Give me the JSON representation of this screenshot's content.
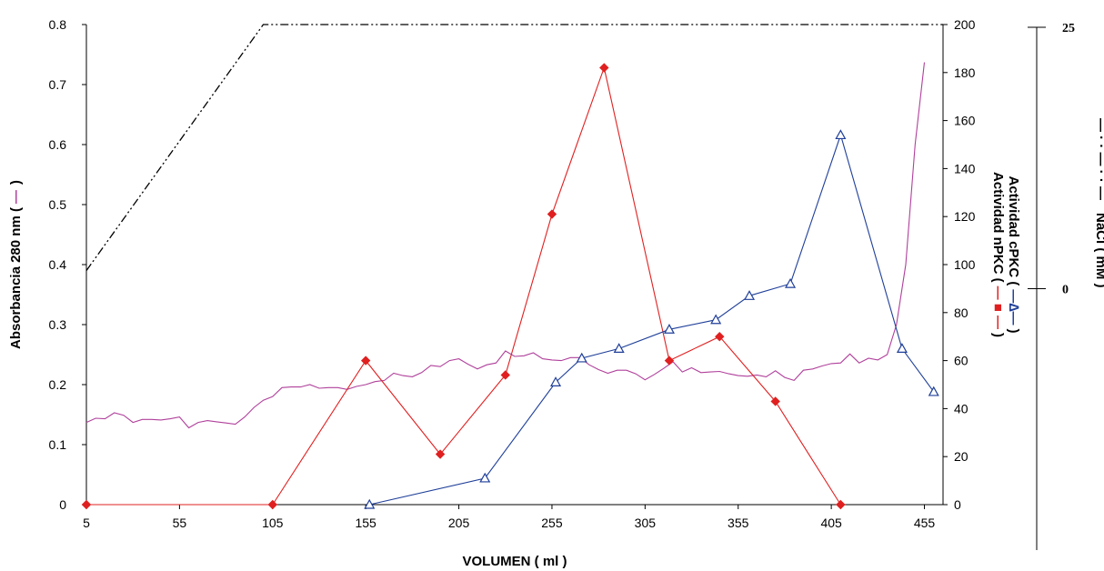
{
  "chart_data": {
    "type": "line",
    "xlabel": "VOLUMEN ( ml )",
    "x_ticks": [
      "5",
      "55",
      "105",
      "155",
      "205",
      "255",
      "305",
      "355",
      "405",
      "455"
    ],
    "xlim": [
      5,
      465
    ],
    "y_left": {
      "label_parts": [
        "Absorbancia 280 nm (",
        "—",
        ")"
      ],
      "label_color": "#b0409b",
      "ylim": [
        0,
        0.8
      ],
      "ticks": [
        "0",
        "0.1",
        "0.2",
        "0.3",
        "0.4",
        "0.5",
        "0.6",
        "0.7",
        "0.8"
      ]
    },
    "y_right": {
      "label_cpkc_parts": [
        "Actividad cPKC (",
        "—∆—",
        ")"
      ],
      "label_npkc_parts": [
        "Actividad nPKC (",
        "— ■ —",
        ")"
      ],
      "cpkc_color": "#1f3f99",
      "npkc_color": "#e02020",
      "ylim": [
        0,
        200
      ],
      "ticks": [
        "0",
        "20",
        "40",
        "60",
        "80",
        "100",
        "120",
        "140",
        "160",
        "180",
        "200"
      ]
    },
    "y_nacl": {
      "label_parts": [
        "NaCl ( mM )",
        "— · · — · · —"
      ],
      "ticks": [
        "0",
        "25"
      ]
    },
    "series": [
      {
        "key": "absorbance",
        "axis": "left",
        "color": "#b0409b",
        "marker": "none",
        "x": [
          5,
          10,
          15,
          20,
          25,
          30,
          35,
          40,
          45,
          50,
          55,
          60,
          65,
          70,
          75,
          80,
          85,
          90,
          95,
          100,
          105,
          110,
          115,
          120,
          125,
          130,
          135,
          140,
          145,
          150,
          155,
          160,
          165,
          170,
          175,
          180,
          185,
          190,
          195,
          200,
          205,
          210,
          215,
          220,
          225,
          230,
          235,
          240,
          245,
          250,
          255,
          260,
          265,
          270,
          275,
          280,
          285,
          290,
          295,
          300,
          305,
          310,
          315,
          320,
          325,
          330,
          335,
          340,
          345,
          350,
          355,
          360,
          365,
          370,
          375,
          380,
          385,
          390,
          395,
          400,
          405,
          410,
          415,
          420,
          425,
          430,
          435,
          440,
          445,
          450,
          455
        ],
        "y": [
          0.137,
          0.144,
          0.143,
          0.153,
          0.149,
          0.137,
          0.142,
          0.142,
          0.141,
          0.143,
          0.146,
          0.128,
          0.137,
          0.14,
          0.138,
          0.136,
          0.134,
          0.146,
          0.162,
          0.174,
          0.18,
          0.195,
          0.196,
          0.196,
          0.2,
          0.194,
          0.195,
          0.195,
          0.192,
          0.197,
          0.2,
          0.205,
          0.207,
          0.219,
          0.215,
          0.213,
          0.22,
          0.232,
          0.23,
          0.24,
          0.243,
          0.234,
          0.226,
          0.233,
          0.236,
          0.256,
          0.247,
          0.248,
          0.253,
          0.243,
          0.241,
          0.24,
          0.245,
          0.245,
          0.233,
          0.225,
          0.219,
          0.224,
          0.224,
          0.218,
          0.208,
          0.217,
          0.227,
          0.238,
          0.221,
          0.228,
          0.22,
          0.221,
          0.222,
          0.218,
          0.215,
          0.214,
          0.216,
          0.213,
          0.223,
          0.212,
          0.207,
          0.224,
          0.226,
          0.231,
          0.235,
          0.236,
          0.251,
          0.236,
          0.244,
          0.241,
          0.25,
          0.3,
          0.4,
          0.6,
          0.737
        ]
      },
      {
        "key": "npkc",
        "axis": "right",
        "color": "#e02020",
        "marker": "diamond",
        "x": [
          5,
          105,
          155,
          195,
          230,
          255,
          283,
          318,
          345,
          375,
          410
        ],
        "y": [
          0,
          0,
          60,
          21,
          54,
          121,
          182,
          60,
          70,
          43,
          0
        ]
      },
      {
        "key": "cpkc",
        "axis": "right",
        "color": "#1f3f99",
        "marker": "triangle",
        "x": [
          157,
          219,
          257,
          271,
          291,
          318,
          343,
          361,
          383,
          410,
          443,
          460
        ],
        "y": [
          0,
          11,
          51,
          61,
          65,
          73,
          77,
          87,
          92,
          154,
          65,
          47
        ]
      },
      {
        "key": "nacl",
        "axis": "left",
        "color": "#000000",
        "marker": "none",
        "dash": "dash-dot-dot",
        "x": [
          5,
          100,
          465
        ],
        "y": [
          0.39,
          0.8,
          0.8
        ]
      }
    ]
  }
}
